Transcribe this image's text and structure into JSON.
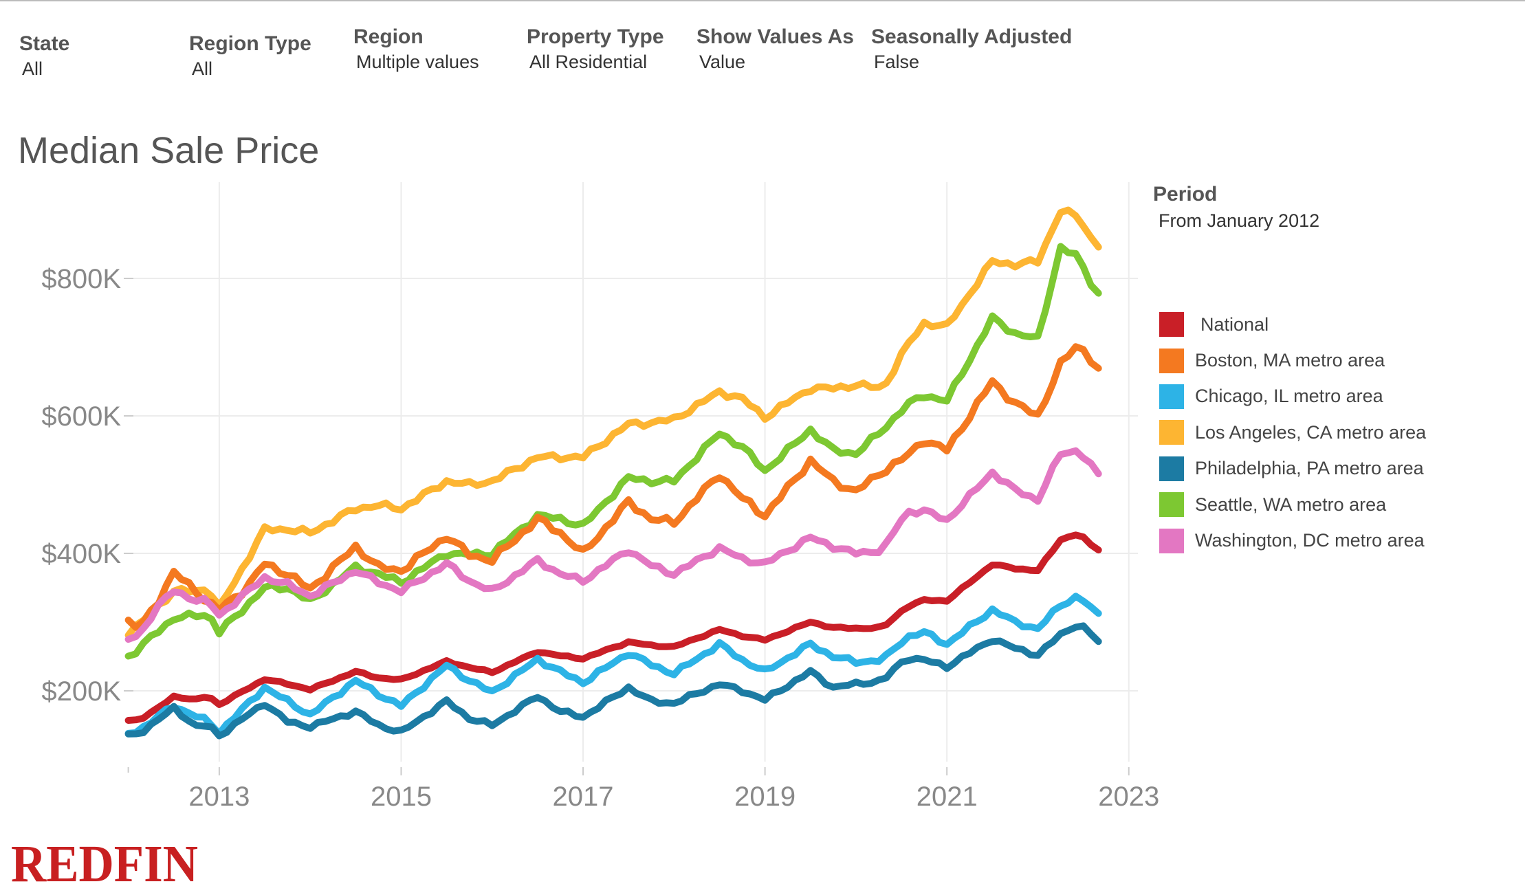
{
  "filters": [
    {
      "label": "State",
      "value": "All"
    },
    {
      "label": "Region Type",
      "value": "All"
    },
    {
      "label": "Region",
      "value": "Multiple values"
    },
    {
      "label": "Property Type",
      "value": "All Residential"
    },
    {
      "label": "Show Values As",
      "value": "Value"
    },
    {
      "label": "Seasonally Adjusted",
      "value": "False"
    }
  ],
  "period": {
    "label": "Period",
    "value": "From January 2012"
  },
  "brand": {
    "logo_text": "REDFIN",
    "color": "#C82021"
  },
  "chart_data": {
    "type": "line",
    "title": "Median Sale Price",
    "xlabel": "",
    "ylabel": "",
    "x_start": "2012-01",
    "x_step": "month",
    "xlim": [
      2011.95,
      2023.1
    ],
    "ylim": [
      90000,
      940000
    ],
    "x_ticks": [
      2013,
      2015,
      2017,
      2019,
      2021,
      2023
    ],
    "x_tick_labels": [
      "2013",
      "2015",
      "2017",
      "2019",
      "2021",
      "2023"
    ],
    "y_ticks": [
      200000,
      400000,
      600000,
      800000
    ],
    "y_tick_labels": [
      "$200K",
      "$400K",
      "$600K",
      "$800K"
    ],
    "grid": true,
    "legend_position": "right",
    "series": [
      {
        "name": "National",
        "color": "#C91F27",
        "anchors": [
          [
            2012.0,
            157000
          ],
          [
            2012.12,
            158000
          ],
          [
            2012.3,
            172000
          ],
          [
            2012.5,
            192000
          ],
          [
            2012.75,
            187000
          ],
          [
            2012.88,
            193000
          ],
          [
            2013.0,
            180000
          ],
          [
            2013.5,
            217000
          ],
          [
            2013.75,
            210000
          ],
          [
            2014.0,
            202000
          ],
          [
            2014.5,
            228000
          ],
          [
            2014.75,
            219000
          ],
          [
            2015.0,
            216000
          ],
          [
            2015.5,
            243000
          ],
          [
            2015.75,
            234000
          ],
          [
            2016.0,
            227000
          ],
          [
            2016.5,
            257000
          ],
          [
            2016.75,
            251000
          ],
          [
            2017.0,
            247000
          ],
          [
            2017.5,
            271000
          ],
          [
            2017.75,
            266000
          ],
          [
            2018.0,
            264000
          ],
          [
            2018.5,
            289000
          ],
          [
            2018.75,
            280000
          ],
          [
            2019.0,
            274000
          ],
          [
            2019.5,
            300000
          ],
          [
            2019.75,
            292000
          ],
          [
            2020.0,
            291000
          ],
          [
            2020.3,
            292000
          ],
          [
            2020.55,
            322000
          ],
          [
            2020.75,
            332000
          ],
          [
            2021.0,
            331000
          ],
          [
            2021.5,
            384000
          ],
          [
            2021.75,
            378000
          ],
          [
            2022.0,
            375000
          ],
          [
            2022.25,
            420000
          ],
          [
            2022.45,
            429000
          ],
          [
            2022.6,
            410000
          ],
          [
            2022.75,
            401000
          ]
        ]
      },
      {
        "name": "Boston, MA metro area",
        "color": "#F47920",
        "anchors": [
          [
            2012.0,
            300000
          ],
          [
            2012.12,
            290000
          ],
          [
            2012.3,
            325000
          ],
          [
            2012.5,
            372000
          ],
          [
            2012.75,
            345000
          ],
          [
            2012.88,
            328000
          ],
          [
            2013.0,
            318000
          ],
          [
            2013.3,
            350000
          ],
          [
            2013.5,
            385000
          ],
          [
            2013.75,
            370000
          ],
          [
            2014.0,
            348000
          ],
          [
            2014.5,
            410000
          ],
          [
            2014.75,
            380000
          ],
          [
            2015.0,
            375000
          ],
          [
            2015.5,
            425000
          ],
          [
            2015.75,
            398000
          ],
          [
            2016.0,
            390000
          ],
          [
            2016.5,
            450000
          ],
          [
            2016.75,
            430000
          ],
          [
            2017.0,
            400000
          ],
          [
            2017.5,
            475000
          ],
          [
            2017.75,
            450000
          ],
          [
            2018.0,
            445000
          ],
          [
            2018.5,
            515000
          ],
          [
            2018.75,
            480000
          ],
          [
            2019.0,
            455000
          ],
          [
            2019.5,
            535000
          ],
          [
            2019.75,
            505000
          ],
          [
            2020.0,
            490000
          ],
          [
            2020.3,
            520000
          ],
          [
            2020.55,
            540000
          ],
          [
            2020.75,
            565000
          ],
          [
            2021.0,
            550000
          ],
          [
            2021.5,
            650000
          ],
          [
            2021.75,
            618000
          ],
          [
            2022.0,
            600000
          ],
          [
            2022.25,
            675000
          ],
          [
            2022.45,
            705000
          ],
          [
            2022.6,
            680000
          ],
          [
            2022.75,
            648000
          ]
        ]
      },
      {
        "name": "Chicago, IL metro area",
        "color": "#2DB3E6",
        "anchors": [
          [
            2012.0,
            138000
          ],
          [
            2012.12,
            143000
          ],
          [
            2012.3,
            160000
          ],
          [
            2012.5,
            178000
          ],
          [
            2012.75,
            163000
          ],
          [
            2012.88,
            155000
          ],
          [
            2013.0,
            140000
          ],
          [
            2013.5,
            205000
          ],
          [
            2013.75,
            185000
          ],
          [
            2014.0,
            165000
          ],
          [
            2014.5,
            215000
          ],
          [
            2014.75,
            195000
          ],
          [
            2015.0,
            178000
          ],
          [
            2015.5,
            237000
          ],
          [
            2015.75,
            215000
          ],
          [
            2016.0,
            198000
          ],
          [
            2016.5,
            246000
          ],
          [
            2016.75,
            228000
          ],
          [
            2017.0,
            212000
          ],
          [
            2017.5,
            255000
          ],
          [
            2017.75,
            238000
          ],
          [
            2018.0,
            225000
          ],
          [
            2018.5,
            268000
          ],
          [
            2018.75,
            245000
          ],
          [
            2019.0,
            228000
          ],
          [
            2019.5,
            268000
          ],
          [
            2019.75,
            250000
          ],
          [
            2020.0,
            242000
          ],
          [
            2020.3,
            245000
          ],
          [
            2020.55,
            278000
          ],
          [
            2020.75,
            285000
          ],
          [
            2021.0,
            268000
          ],
          [
            2021.5,
            318000
          ],
          [
            2021.75,
            300000
          ],
          [
            2022.0,
            290000
          ],
          [
            2022.25,
            325000
          ],
          [
            2022.45,
            338000
          ],
          [
            2022.6,
            318000
          ],
          [
            2022.75,
            303000
          ]
        ]
      },
      {
        "name": "Los Angeles, CA metro area",
        "color": "#FDB532",
        "anchors": [
          [
            2012.0,
            285000
          ],
          [
            2012.12,
            295000
          ],
          [
            2012.3,
            320000
          ],
          [
            2012.5,
            345000
          ],
          [
            2012.75,
            345000
          ],
          [
            2012.88,
            350000
          ],
          [
            2013.0,
            320000
          ],
          [
            2013.5,
            435000
          ],
          [
            2013.75,
            435000
          ],
          [
            2014.0,
            430000
          ],
          [
            2014.5,
            465000
          ],
          [
            2014.75,
            470000
          ],
          [
            2015.0,
            465000
          ],
          [
            2015.5,
            505000
          ],
          [
            2015.75,
            500000
          ],
          [
            2016.0,
            505000
          ],
          [
            2016.5,
            540000
          ],
          [
            2016.75,
            540000
          ],
          [
            2017.0,
            540000
          ],
          [
            2017.5,
            588000
          ],
          [
            2017.75,
            590000
          ],
          [
            2018.0,
            595000
          ],
          [
            2018.5,
            635000
          ],
          [
            2018.75,
            625000
          ],
          [
            2019.0,
            598000
          ],
          [
            2019.5,
            640000
          ],
          [
            2019.75,
            640000
          ],
          [
            2020.0,
            645000
          ],
          [
            2020.3,
            640000
          ],
          [
            2020.55,
            700000
          ],
          [
            2020.75,
            735000
          ],
          [
            2021.0,
            730000
          ],
          [
            2021.5,
            825000
          ],
          [
            2021.75,
            820000
          ],
          [
            2022.0,
            825000
          ],
          [
            2022.25,
            898000
          ],
          [
            2022.45,
            890000
          ],
          [
            2022.6,
            855000
          ],
          [
            2022.75,
            840000
          ]
        ]
      },
      {
        "name": "Philadelphia, PA metro area",
        "color": "#1C7BA3",
        "anchors": [
          [
            2012.0,
            135000
          ],
          [
            2012.12,
            138000
          ],
          [
            2012.3,
            155000
          ],
          [
            2012.5,
            175000
          ],
          [
            2012.75,
            148000
          ],
          [
            2012.88,
            150000
          ],
          [
            2013.0,
            135000
          ],
          [
            2013.5,
            182000
          ],
          [
            2013.75,
            155000
          ],
          [
            2014.0,
            148000
          ],
          [
            2014.5,
            170000
          ],
          [
            2014.75,
            150000
          ],
          [
            2015.0,
            140000
          ],
          [
            2015.5,
            185000
          ],
          [
            2015.75,
            160000
          ],
          [
            2016.0,
            150000
          ],
          [
            2016.5,
            192000
          ],
          [
            2016.75,
            170000
          ],
          [
            2017.0,
            162000
          ],
          [
            2017.5,
            205000
          ],
          [
            2017.75,
            185000
          ],
          [
            2018.0,
            182000
          ],
          [
            2018.5,
            210000
          ],
          [
            2018.75,
            200000
          ],
          [
            2019.0,
            187000
          ],
          [
            2019.5,
            228000
          ],
          [
            2019.75,
            205000
          ],
          [
            2020.0,
            210000
          ],
          [
            2020.3,
            215000
          ],
          [
            2020.55,
            248000
          ],
          [
            2020.75,
            245000
          ],
          [
            2021.0,
            235000
          ],
          [
            2021.5,
            275000
          ],
          [
            2021.75,
            262000
          ],
          [
            2022.0,
            252000
          ],
          [
            2022.25,
            282000
          ],
          [
            2022.45,
            298000
          ],
          [
            2022.6,
            280000
          ],
          [
            2022.75,
            262000
          ]
        ]
      },
      {
        "name": "Seattle, WA metro area",
        "color": "#7DC832",
        "anchors": [
          [
            2012.0,
            250000
          ],
          [
            2012.12,
            260000
          ],
          [
            2012.3,
            285000
          ],
          [
            2012.5,
            305000
          ],
          [
            2012.75,
            310000
          ],
          [
            2012.88,
            312000
          ],
          [
            2013.0,
            285000
          ],
          [
            2013.5,
            350000
          ],
          [
            2013.75,
            350000
          ],
          [
            2014.0,
            330000
          ],
          [
            2014.5,
            380000
          ],
          [
            2014.75,
            370000
          ],
          [
            2015.0,
            358000
          ],
          [
            2015.5,
            400000
          ],
          [
            2015.75,
            398000
          ],
          [
            2016.0,
            400000
          ],
          [
            2016.5,
            455000
          ],
          [
            2016.75,
            450000
          ],
          [
            2017.0,
            440000
          ],
          [
            2017.5,
            510000
          ],
          [
            2017.75,
            505000
          ],
          [
            2018.0,
            505000
          ],
          [
            2018.5,
            575000
          ],
          [
            2018.75,
            555000
          ],
          [
            2019.0,
            520000
          ],
          [
            2019.5,
            580000
          ],
          [
            2019.75,
            550000
          ],
          [
            2020.0,
            545000
          ],
          [
            2020.3,
            580000
          ],
          [
            2020.55,
            615000
          ],
          [
            2020.75,
            630000
          ],
          [
            2021.0,
            622000
          ],
          [
            2021.5,
            742000
          ],
          [
            2021.75,
            720000
          ],
          [
            2022.0,
            712000
          ],
          [
            2022.25,
            845000
          ],
          [
            2022.45,
            830000
          ],
          [
            2022.6,
            790000
          ],
          [
            2022.75,
            760000
          ]
        ]
      },
      {
        "name": "Washington, DC metro area",
        "color": "#E377C2",
        "anchors": [
          [
            2012.0,
            275000
          ],
          [
            2012.12,
            280000
          ],
          [
            2012.3,
            320000
          ],
          [
            2012.5,
            345000
          ],
          [
            2012.75,
            332000
          ],
          [
            2012.88,
            330000
          ],
          [
            2013.0,
            310000
          ],
          [
            2013.5,
            365000
          ],
          [
            2013.75,
            355000
          ],
          [
            2014.0,
            338000
          ],
          [
            2014.5,
            375000
          ],
          [
            2014.75,
            358000
          ],
          [
            2015.0,
            345000
          ],
          [
            2015.5,
            385000
          ],
          [
            2015.75,
            360000
          ],
          [
            2016.0,
            345000
          ],
          [
            2016.5,
            390000
          ],
          [
            2016.75,
            370000
          ],
          [
            2017.0,
            360000
          ],
          [
            2017.5,
            405000
          ],
          [
            2017.75,
            382000
          ],
          [
            2018.0,
            370000
          ],
          [
            2018.5,
            408000
          ],
          [
            2018.75,
            392000
          ],
          [
            2019.0,
            385000
          ],
          [
            2019.5,
            423000
          ],
          [
            2019.75,
            410000
          ],
          [
            2020.0,
            400000
          ],
          [
            2020.3,
            405000
          ],
          [
            2020.55,
            460000
          ],
          [
            2020.75,
            462000
          ],
          [
            2021.0,
            448000
          ],
          [
            2021.5,
            518000
          ],
          [
            2021.75,
            492000
          ],
          [
            2022.0,
            478000
          ],
          [
            2022.25,
            545000
          ],
          [
            2022.45,
            550000
          ],
          [
            2022.6,
            525000
          ],
          [
            2022.75,
            500000
          ]
        ]
      }
    ]
  }
}
